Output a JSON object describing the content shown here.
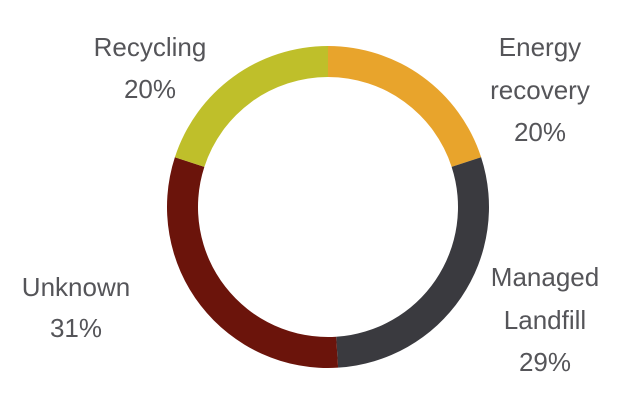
{
  "chart_data": {
    "type": "pie",
    "donut": true,
    "start": "top",
    "direction": "clockwise",
    "slices": [
      {
        "label": [
          "Energy",
          "recovery"
        ],
        "value": 20,
        "value_label": "20%",
        "color": "#E8A42C"
      },
      {
        "label": [
          "Managed",
          "Landfill"
        ],
        "value": 29,
        "value_label": "29%",
        "color": "#3A3A3F"
      },
      {
        "label": [
          "Unknown"
        ],
        "value": 31,
        "value_label": "31%",
        "color": "#6B140B"
      },
      {
        "label": [
          "Recycling"
        ],
        "value": 20,
        "value_label": "20%",
        "color": "#BFBF2A"
      }
    ]
  }
}
